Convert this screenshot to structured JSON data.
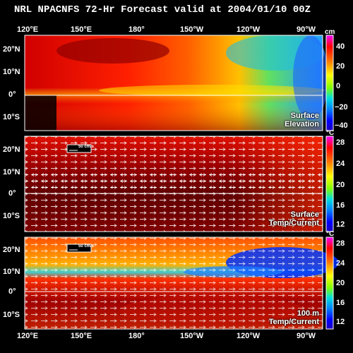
{
  "title": "NRL NPACNFS 72-Hr Forecast valid at 2004/01/10 00Z",
  "lon_labels": [
    "120°E",
    "150°E",
    "180°",
    "150°W",
    "120°W",
    "90°W"
  ],
  "lat_labels": [
    "20°N",
    "10°N",
    "0°",
    "10°S"
  ],
  "panels": [
    {
      "label_line1": "Surface",
      "label_line2": "Elevation",
      "unit": "cm",
      "colorbar_ticks": [
        "40",
        "20",
        "0",
        "−20",
        "−40"
      ],
      "vectors": false,
      "vector_scale": ""
    },
    {
      "label_line1": "Surface",
      "label_line2": "Temp/Current",
      "unit": "°C",
      "colorbar_ticks": [
        "28",
        "24",
        "20",
        "16",
        "12"
      ],
      "vectors": true,
      "vector_scale": "50 cm/s"
    },
    {
      "label_line1": "100 m",
      "label_line2": "Temp/Current",
      "unit": "°C",
      "colorbar_ticks": [
        "28",
        "24",
        "20",
        "16",
        "12"
      ],
      "vectors": true,
      "vector_scale": "50 cm/s"
    }
  ],
  "colors": {
    "background": "#000000",
    "grid": "#ffffff",
    "colorbar_stops": [
      "#ff00ff",
      "#ff0000",
      "#ff8000",
      "#ffff00",
      "#80ff00",
      "#00e0e0",
      "#0080ff",
      "#0000ff",
      "#2000c0"
    ]
  }
}
